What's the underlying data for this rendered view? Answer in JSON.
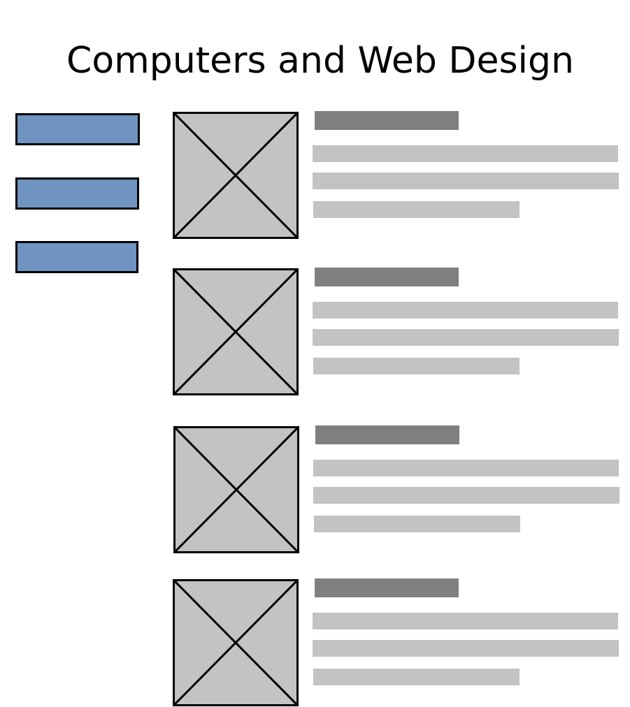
{
  "header": {
    "title": "Computers and Web Design"
  },
  "nav": {
    "buttons": [
      "",
      "",
      ""
    ]
  },
  "items": [
    {
      "title": "",
      "lines": [
        "",
        "",
        ""
      ]
    },
    {
      "title": "",
      "lines": [
        "",
        "",
        ""
      ]
    },
    {
      "title": "",
      "lines": [
        "",
        "",
        ""
      ]
    },
    {
      "title": "",
      "lines": [
        "",
        "",
        ""
      ]
    }
  ],
  "colors": {
    "nav_button": "#6f94c1",
    "placeholder_fill": "#c3c3c3",
    "title_bar": "#808080",
    "border": "#000000"
  },
  "icons": {
    "thumbnail": "image-placeholder-icon"
  }
}
